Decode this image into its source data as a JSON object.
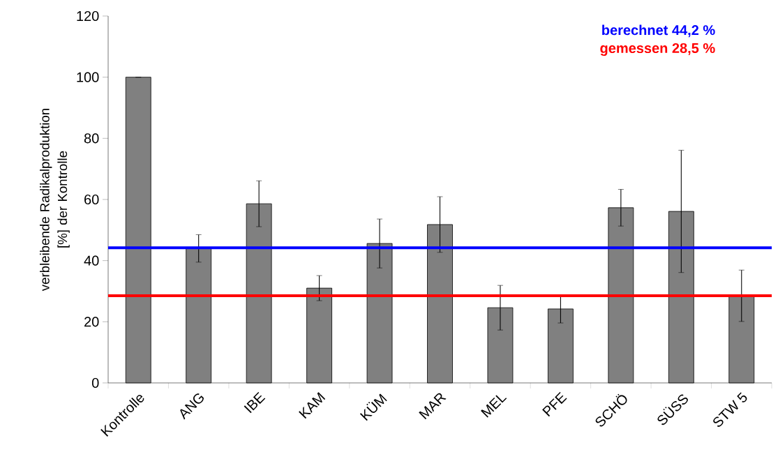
{
  "chart_data": {
    "type": "bar",
    "ylabel": "verbleibende Radikalproduktion [%] der Kontrolle",
    "categories": [
      "Kontrolle",
      "ANG",
      "IBE",
      "KAM",
      "KÜM",
      "MAR",
      "MEL",
      "PFE",
      "SCHÖ",
      "SÜSS",
      "STW 5"
    ],
    "values": [
      100,
      44.0,
      58.6,
      31.0,
      45.6,
      51.8,
      24.6,
      24.2,
      57.3,
      56.1,
      28.5
    ],
    "errors": [
      null,
      4.5,
      7.5,
      4.1,
      8,
      9.1,
      7.3,
      4.6,
      6,
      20,
      8.4
    ],
    "color": "#808080",
    "ylim": [
      0,
      120
    ],
    "yticks": [
      0,
      20,
      40,
      60,
      80,
      100,
      120
    ],
    "ref_lines": [
      {
        "axis": "y",
        "value": 44.2,
        "label": "berechnet 44,2 %",
        "color": "#0000ff"
      },
      {
        "axis": "y",
        "value": 28.5,
        "label": "gemessen 28,5 %",
        "color": "#ff0000"
      }
    ]
  }
}
